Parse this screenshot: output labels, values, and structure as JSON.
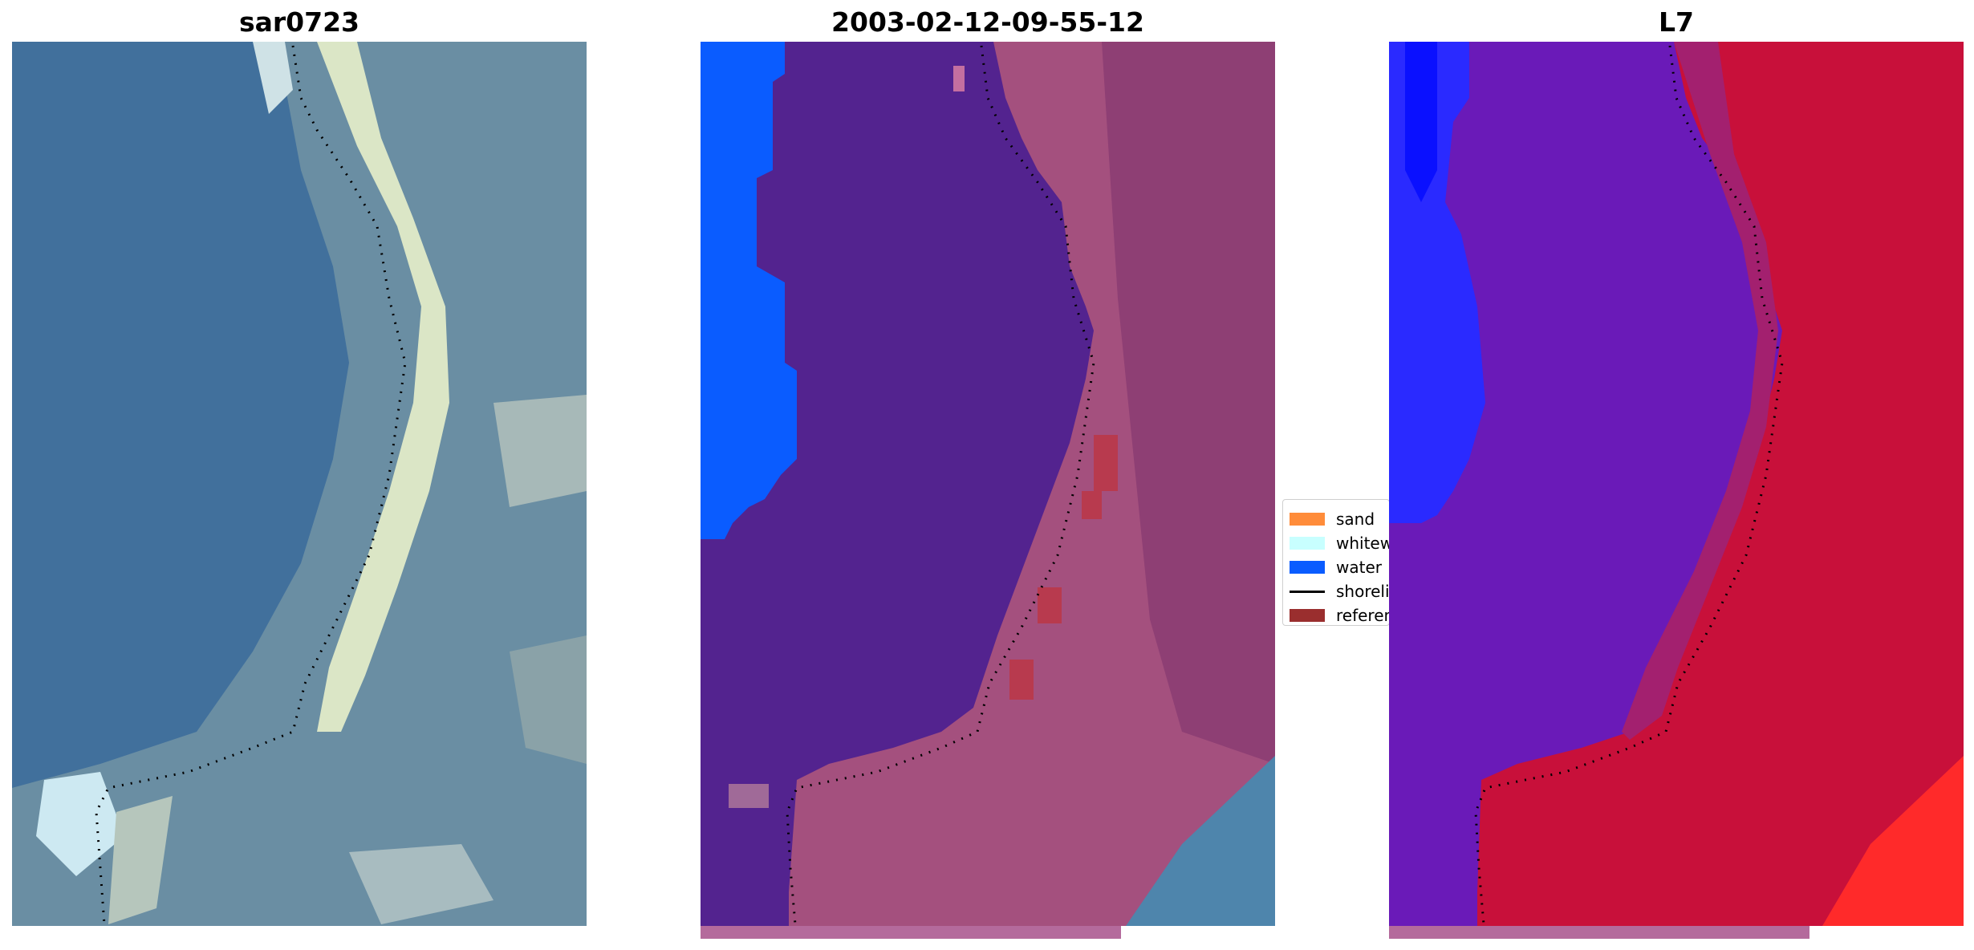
{
  "panels": [
    {
      "title": "sar0723"
    },
    {
      "title": "2003-02-12-09-55-12"
    },
    {
      "title": "L7"
    }
  ],
  "legend": {
    "items": [
      {
        "label": "sand",
        "color": "#ff8c3a",
        "kind": "patch"
      },
      {
        "label": "whitewater",
        "color": "#c8ffff",
        "kind": "patch"
      },
      {
        "label": "water",
        "color": "#0a5cff",
        "kind": "patch"
      },
      {
        "label": "shoreline",
        "color": "#000000",
        "kind": "line"
      },
      {
        "label": "reference",
        "color": "#9a2e2e",
        "kind": "patch"
      }
    ]
  },
  "colors": {
    "rgb_water": "#3f6f9e",
    "rgb_sand": "#e6efcf",
    "class_water": "#0a5cff",
    "class_dark_water": "#53238f",
    "class_land": "#a4507e",
    "index_water": "#2a2aff",
    "index_purple": "#6a1ab8",
    "index_land": "#c8103a"
  }
}
